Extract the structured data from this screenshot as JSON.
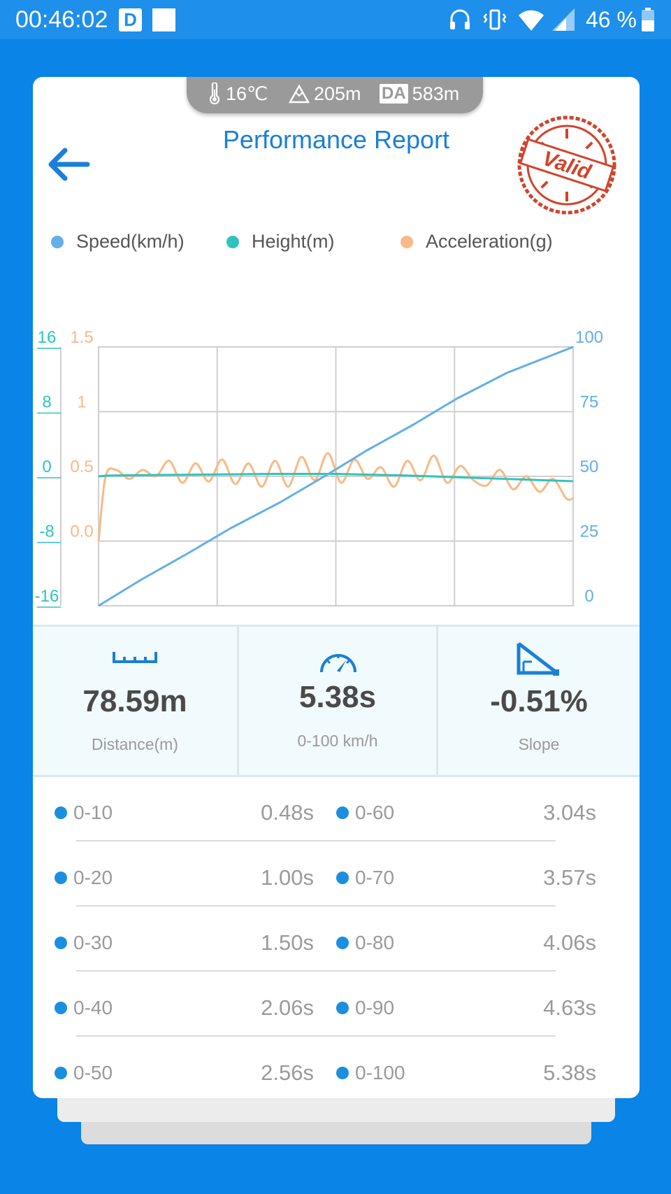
{
  "status_bar": {
    "time": "00:46:02",
    "badge_d": "D",
    "battery": "46 %"
  },
  "env": {
    "temperature": "16℃",
    "altitude": "205m",
    "da_label": "DA",
    "density_altitude": "583m"
  },
  "header": {
    "title": "Performance Report",
    "stamp": "Valid"
  },
  "legend": [
    {
      "label": "Speed(km/h)",
      "color": "#64aee9"
    },
    {
      "label": "Height(m)",
      "color": "#2ec4bd"
    },
    {
      "label": "Acceleration(g)",
      "color": "#f9b987"
    }
  ],
  "chart_data": {
    "type": "line",
    "axes": {
      "height_ticks": [
        "16",
        "8",
        "0",
        "-8",
        "-16"
      ],
      "height_range": [
        -16,
        16
      ],
      "accel_ticks": [
        "1.5",
        "1",
        "0.5",
        "0.0"
      ],
      "accel_range": [
        -0.5,
        1.5
      ],
      "speed_ticks": [
        "100",
        "75",
        "50",
        "25",
        "0"
      ],
      "speed_range": [
        0,
        100
      ],
      "time_range": [
        0,
        5.38
      ]
    },
    "grid": true,
    "legend_position": "top",
    "series": [
      {
        "name": "Speed(km/h)",
        "axis": "right",
        "x": [
          0,
          0.48,
          1.0,
          1.5,
          2.06,
          2.56,
          3.04,
          3.57,
          4.06,
          4.63,
          5.38
        ],
        "y": [
          0,
          10,
          20,
          30,
          40,
          50,
          60,
          70,
          80,
          90,
          100
        ]
      },
      {
        "name": "Height(m)",
        "axis": "left",
        "x": [
          0,
          0.1,
          1.0,
          2.0,
          2.7,
          3.5,
          4.3,
          5.38
        ],
        "y": [
          0,
          0.1,
          0.2,
          0.3,
          0.3,
          0.1,
          -0.2,
          -0.6
        ]
      },
      {
        "name": "Acceleration(g)",
        "axis": "left2",
        "x": [
          0,
          0.08,
          0.2,
          0.35,
          0.5,
          0.65,
          0.8,
          0.95,
          1.1,
          1.25,
          1.4,
          1.55,
          1.7,
          1.85,
          2.0,
          2.15,
          2.3,
          2.45,
          2.6,
          2.75,
          2.9,
          3.05,
          3.2,
          3.35,
          3.5,
          3.65,
          3.8,
          3.95,
          4.1,
          4.25,
          4.4,
          4.55,
          4.7,
          4.85,
          5.0,
          5.15,
          5.3,
          5.38
        ],
        "y": [
          0.0,
          0.5,
          0.55,
          0.48,
          0.55,
          0.5,
          0.62,
          0.45,
          0.6,
          0.46,
          0.63,
          0.44,
          0.6,
          0.42,
          0.62,
          0.42,
          0.65,
          0.47,
          0.68,
          0.45,
          0.63,
          0.48,
          0.57,
          0.42,
          0.62,
          0.47,
          0.66,
          0.45,
          0.58,
          0.47,
          0.43,
          0.55,
          0.4,
          0.5,
          0.38,
          0.48,
          0.33,
          0.33
        ]
      }
    ]
  },
  "stats": [
    {
      "value": "78.59m",
      "label": "Distance(m)",
      "icon": "ruler-icon"
    },
    {
      "value": "5.38s",
      "label": "0-100 km/h",
      "icon": "speedometer-icon"
    },
    {
      "value": "-0.51%",
      "label": "Slope",
      "icon": "slope-icon"
    }
  ],
  "splits": [
    {
      "label": "0-10",
      "value": "0.48s"
    },
    {
      "label": "0-20",
      "value": "1.00s"
    },
    {
      "label": "0-30",
      "value": "1.50s"
    },
    {
      "label": "0-40",
      "value": "2.06s"
    },
    {
      "label": "0-50",
      "value": "2.56s"
    },
    {
      "label": "0-60",
      "value": "3.04s"
    },
    {
      "label": "0-70",
      "value": "3.57s"
    },
    {
      "label": "0-80",
      "value": "4.06s"
    },
    {
      "label": "0-90",
      "value": "4.63s"
    },
    {
      "label": "0-100",
      "value": "5.38s"
    }
  ]
}
